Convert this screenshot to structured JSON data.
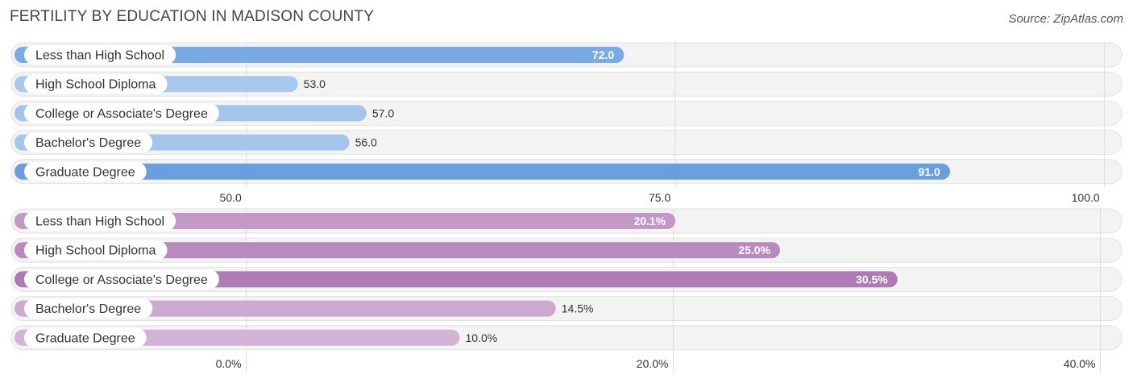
{
  "header": {
    "title": "FERTILITY BY EDUCATION IN MADISON COUNTY",
    "source": "Source: ZipAtlas.com"
  },
  "chart_data": [
    {
      "type": "bar",
      "orientation": "horizontal",
      "categories": [
        "Less than High School",
        "High School Diploma",
        "College or Associate's Degree",
        "Bachelor's Degree",
        "Graduate Degree"
      ],
      "values": [
        72.0,
        53.0,
        57.0,
        56.0,
        91.0
      ],
      "value_labels": [
        "72.0",
        "53.0",
        "57.0",
        "56.0",
        "91.0"
      ],
      "bar_colors": [
        "#7aaae3",
        "#a9c8ed",
        "#a4c4eb",
        "#a5c5ec",
        "#6a9fdd"
      ],
      "xlim": [
        36.3,
        101.0
      ],
      "ticks": [
        50.0,
        75.0,
        100.0
      ],
      "tick_labels": [
        "50.0",
        "75.0",
        "100.0"
      ],
      "grid": true
    },
    {
      "type": "bar",
      "orientation": "horizontal",
      "categories": [
        "Less than High School",
        "High School Diploma",
        "College or Associate's Degree",
        "Bachelor's Degree",
        "Graduate Degree"
      ],
      "values": [
        20.1,
        25.0,
        30.5,
        14.5,
        10.0
      ],
      "value_labels": [
        "20.1%",
        "25.0%",
        "30.5%",
        "14.5%",
        "10.0%"
      ],
      "bar_colors": [
        "#c298c6",
        "#b98abe",
        "#ae7bb5",
        "#ccaad0",
        "#d3b4d6"
      ],
      "xlim": [
        -11.0,
        41.0
      ],
      "ticks": [
        0.0,
        20.0,
        40.0
      ],
      "tick_labels": [
        "0.0%",
        "20.0%",
        "40.0%"
      ],
      "grid": true
    }
  ]
}
